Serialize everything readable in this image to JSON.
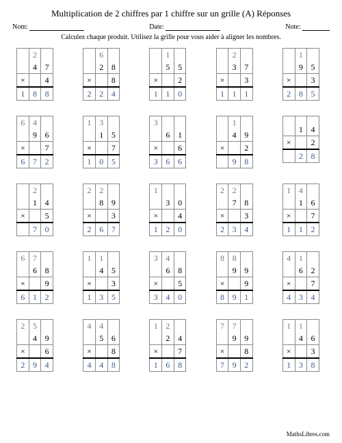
{
  "title": "Multiplication de 2 chiffres par 1 chiffre sur un grille (A) Réponses",
  "labels": {
    "nom": "Nom:",
    "date": "Date:",
    "note": "Note:"
  },
  "instruction": "Calculez chaque produit. Utilisez la grille pour vous aider à aligner les nombres.",
  "footer": "MathsLibres.com",
  "times_sign": "×",
  "style": {
    "answer_color": "#3a5a8a",
    "carry_color": "#777777",
    "grid_border": "#888888",
    "bg": "#ffffff",
    "digit_fontsize": 12,
    "carry_fontsize": 6,
    "cols": 5,
    "rows": 5
  },
  "problems": [
    {
      "carry": [
        "",
        "2",
        ""
      ],
      "a": [
        "",
        "4",
        "7"
      ],
      "b": [
        "×",
        "",
        "4"
      ],
      "ans": [
        "1",
        "8",
        "8"
      ]
    },
    {
      "carry": [
        "",
        "6",
        ""
      ],
      "a": [
        "",
        "2",
        "8"
      ],
      "b": [
        "×",
        "",
        "8"
      ],
      "ans": [
        "2",
        "2",
        "4"
      ]
    },
    {
      "carry": [
        "",
        "1",
        ""
      ],
      "a": [
        "",
        "5",
        "5"
      ],
      "b": [
        "×",
        "",
        "2"
      ],
      "ans": [
        "1",
        "1",
        "0"
      ]
    },
    {
      "carry": [
        "",
        "2",
        ""
      ],
      "a": [
        "",
        "3",
        "7"
      ],
      "b": [
        "×",
        "",
        "3"
      ],
      "ans": [
        "1",
        "1",
        "1"
      ]
    },
    {
      "carry": [
        "",
        "1",
        ""
      ],
      "a": [
        "",
        "9",
        "5"
      ],
      "b": [
        "×",
        "",
        "3"
      ],
      "ans": [
        "2",
        "8",
        "5"
      ]
    },
    {
      "carry": [
        "6",
        "4",
        ""
      ],
      "a": [
        "",
        "9",
        "6"
      ],
      "b": [
        "×",
        "",
        "7"
      ],
      "ans": [
        "6",
        "7",
        "2"
      ]
    },
    {
      "carry": [
        "1",
        "3",
        ""
      ],
      "a": [
        "",
        "1",
        "5"
      ],
      "b": [
        "×",
        "",
        "7"
      ],
      "ans": [
        "1",
        "0",
        "5"
      ]
    },
    {
      "carry": [
        "3",
        "",
        ""
      ],
      "a": [
        "",
        "6",
        "1"
      ],
      "b": [
        "×",
        "",
        "6"
      ],
      "ans": [
        "3",
        "6",
        "6"
      ]
    },
    {
      "carry": [
        "",
        "1",
        ""
      ],
      "a": [
        "",
        "4",
        "9"
      ],
      "b": [
        "×",
        "",
        "2"
      ],
      "ans": [
        "",
        "9",
        "8"
      ]
    },
    {
      "carry": [
        "",
        "",
        ""
      ],
      "a": [
        "",
        "1",
        "4"
      ],
      "b": [
        "×",
        "",
        "2"
      ],
      "ans": [
        "",
        "2",
        "8"
      ]
    },
    {
      "carry": [
        "",
        "2",
        ""
      ],
      "a": [
        "",
        "1",
        "4"
      ],
      "b": [
        "×",
        "",
        "5"
      ],
      "ans": [
        "",
        "7",
        "0"
      ]
    },
    {
      "carry": [
        "2",
        "2",
        ""
      ],
      "a": [
        "",
        "8",
        "9"
      ],
      "b": [
        "×",
        "",
        "3"
      ],
      "ans": [
        "2",
        "6",
        "7"
      ]
    },
    {
      "carry": [
        "1",
        "",
        ""
      ],
      "a": [
        "",
        "3",
        "0"
      ],
      "b": [
        "×",
        "",
        "4"
      ],
      "ans": [
        "1",
        "2",
        "0"
      ]
    },
    {
      "carry": [
        "2",
        "2",
        ""
      ],
      "a": [
        "",
        "7",
        "8"
      ],
      "b": [
        "×",
        "",
        "3"
      ],
      "ans": [
        "2",
        "3",
        "4"
      ]
    },
    {
      "carry": [
        "1",
        "4",
        ""
      ],
      "a": [
        "",
        "1",
        "6"
      ],
      "b": [
        "×",
        "",
        "7"
      ],
      "ans": [
        "1",
        "1",
        "2"
      ]
    },
    {
      "carry": [
        "6",
        "7",
        ""
      ],
      "a": [
        "",
        "6",
        "8"
      ],
      "b": [
        "×",
        "",
        "9"
      ],
      "ans": [
        "6",
        "1",
        "2"
      ]
    },
    {
      "carry": [
        "1",
        "1",
        ""
      ],
      "a": [
        "",
        "4",
        "5"
      ],
      "b": [
        "×",
        "",
        "3"
      ],
      "ans": [
        "1",
        "3",
        "5"
      ]
    },
    {
      "carry": [
        "3",
        "4",
        ""
      ],
      "a": [
        "",
        "6",
        "8"
      ],
      "b": [
        "×",
        "",
        "5"
      ],
      "ans": [
        "3",
        "4",
        "0"
      ]
    },
    {
      "carry": [
        "8",
        "8",
        ""
      ],
      "a": [
        "",
        "9",
        "9"
      ],
      "b": [
        "×",
        "",
        "9"
      ],
      "ans": [
        "8",
        "9",
        "1"
      ]
    },
    {
      "carry": [
        "4",
        "1",
        ""
      ],
      "a": [
        "",
        "6",
        "2"
      ],
      "b": [
        "×",
        "",
        "7"
      ],
      "ans": [
        "4",
        "3",
        "4"
      ]
    },
    {
      "carry": [
        "2",
        "5",
        ""
      ],
      "a": [
        "",
        "4",
        "9"
      ],
      "b": [
        "×",
        "",
        "6"
      ],
      "ans": [
        "2",
        "9",
        "4"
      ]
    },
    {
      "carry": [
        "4",
        "4",
        ""
      ],
      "a": [
        "",
        "5",
        "6"
      ],
      "b": [
        "×",
        "",
        "8"
      ],
      "ans": [
        "4",
        "4",
        "8"
      ]
    },
    {
      "carry": [
        "1",
        "2",
        ""
      ],
      "a": [
        "",
        "2",
        "4"
      ],
      "b": [
        "×",
        "",
        "7"
      ],
      "ans": [
        "1",
        "6",
        "8"
      ]
    },
    {
      "carry": [
        "7",
        "7",
        ""
      ],
      "a": [
        "",
        "9",
        "9"
      ],
      "b": [
        "×",
        "",
        "8"
      ],
      "ans": [
        "7",
        "9",
        "2"
      ]
    },
    {
      "carry": [
        "1",
        "1",
        ""
      ],
      "a": [
        "",
        "4",
        "6"
      ],
      "b": [
        "×",
        "",
        "3"
      ],
      "ans": [
        "1",
        "3",
        "8"
      ]
    }
  ]
}
